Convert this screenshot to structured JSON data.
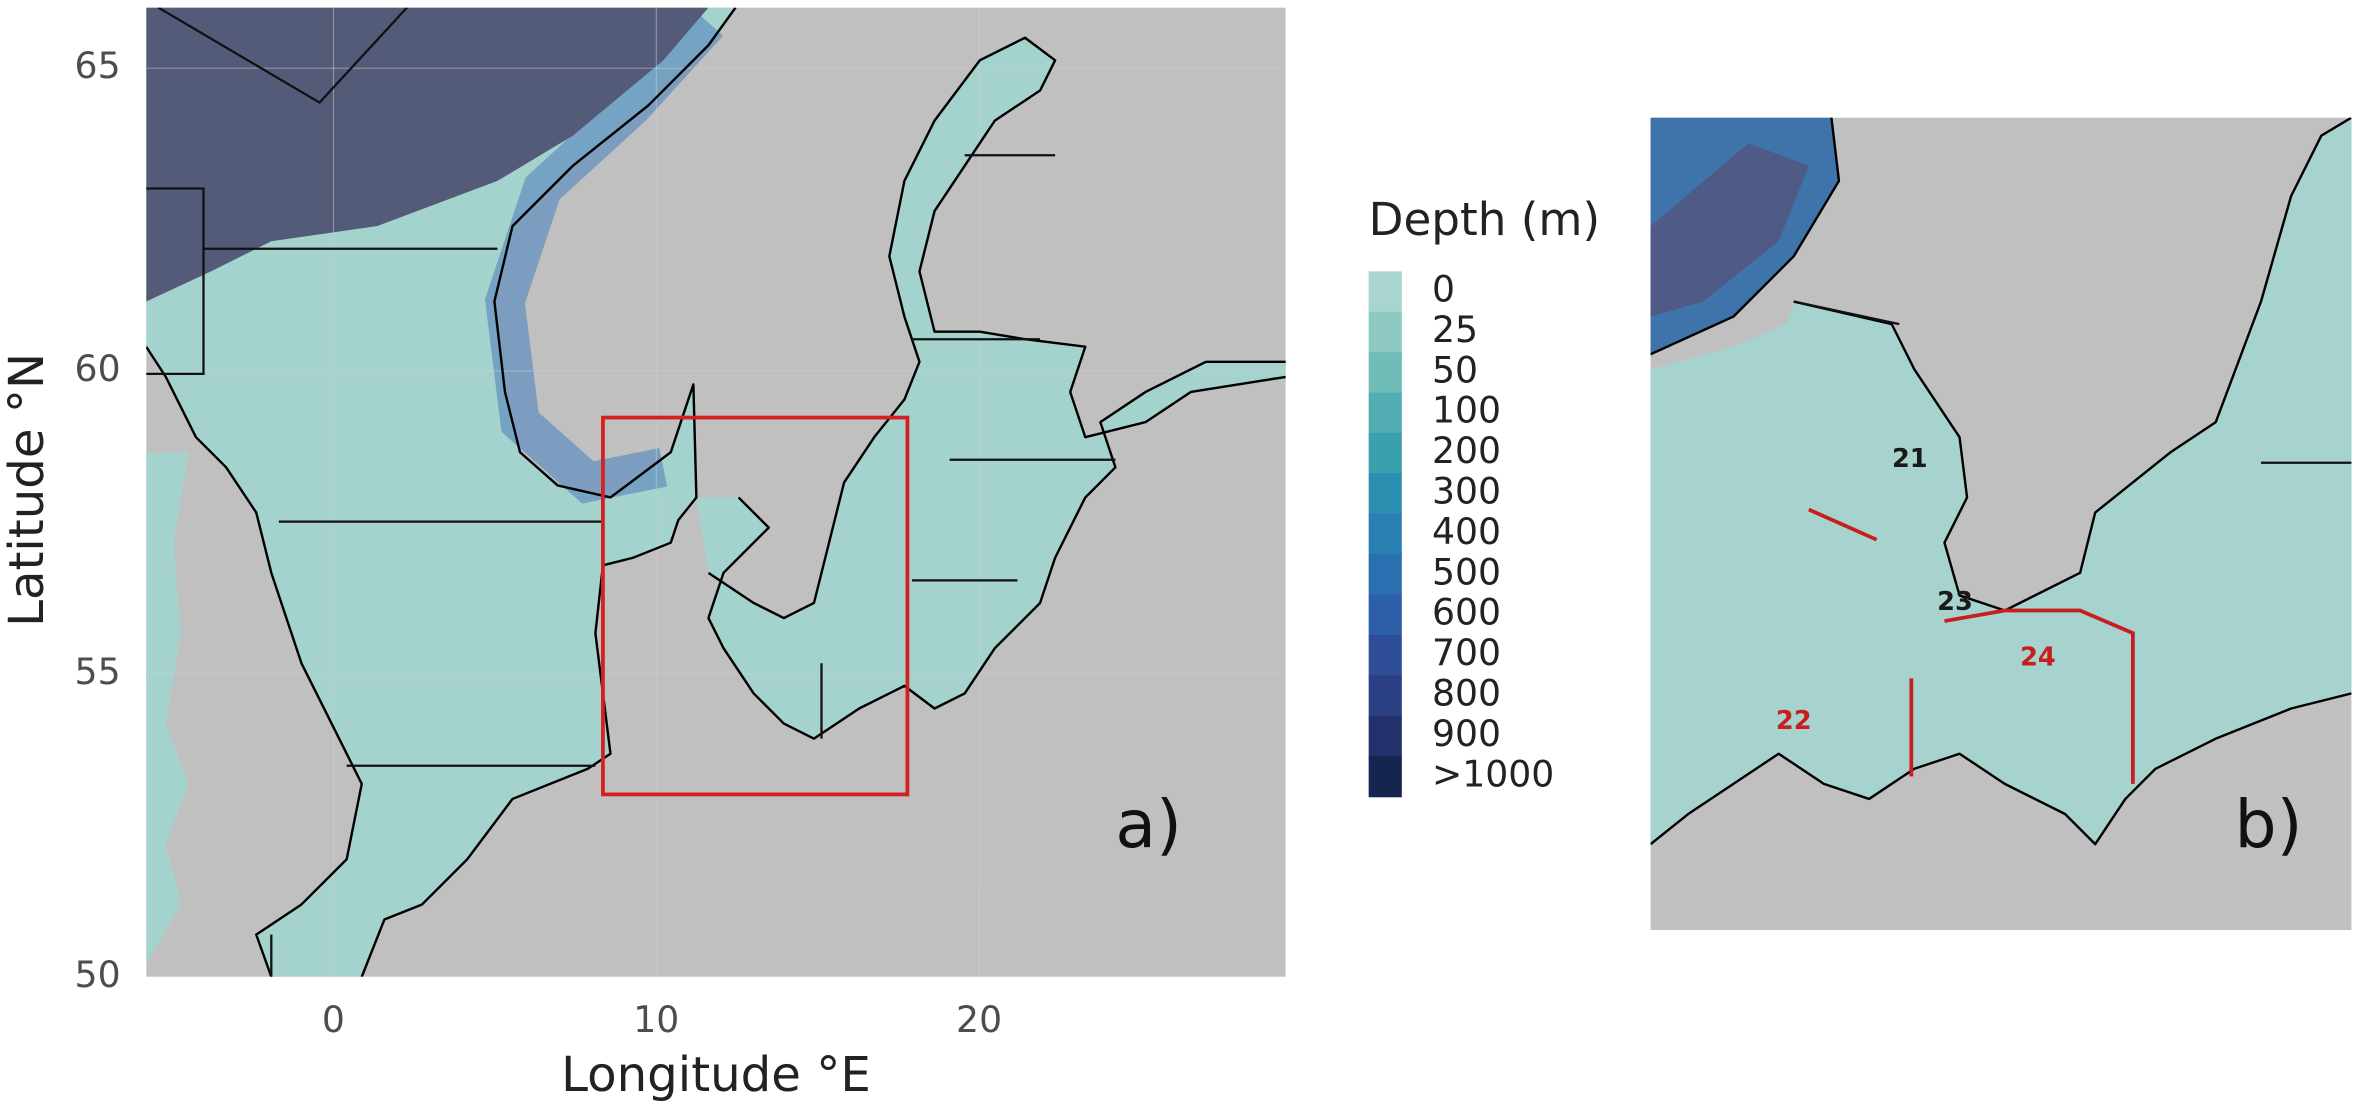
{
  "panel_a": {
    "label": "a)",
    "x_axis": {
      "label": "Longitude °E",
      "ticks": [
        0,
        10,
        20
      ]
    },
    "y_axis": {
      "label": "Latitude °N",
      "ticks": [
        50,
        55,
        60,
        65
      ]
    },
    "xlim": [
      -5.8,
      29.5
    ],
    "ylim": [
      50,
      66
    ]
  },
  "legend": {
    "title": "Depth (m)",
    "entries": [
      {
        "label": "0",
        "color": "#a9d5cf"
      },
      {
        "label": "25",
        "color": "#8ecac1"
      },
      {
        "label": "50",
        "color": "#70bcb7"
      },
      {
        "label": "100",
        "color": "#52adb2"
      },
      {
        "label": "200",
        "color": "#3aa0ad"
      },
      {
        "label": "300",
        "color": "#2d8fb0"
      },
      {
        "label": "400",
        "color": "#2a80b3"
      },
      {
        "label": "500",
        "color": "#2a6fb0"
      },
      {
        "label": "600",
        "color": "#2c5fa8"
      },
      {
        "label": "700",
        "color": "#2e4f98"
      },
      {
        "label": "800",
        "color": "#2b3f84"
      },
      {
        "label": "900",
        "color": "#22306c"
      },
      {
        "label": ">1000",
        "color": "#162550"
      }
    ]
  },
  "panel_b": {
    "label": "b)",
    "areas": [
      {
        "label": "21",
        "color": "#1a1a1a"
      },
      {
        "label": "22",
        "color": "#c81e1e"
      },
      {
        "label": "23",
        "color": "#1a1a1a"
      },
      {
        "label": "24",
        "color": "#c81e1e"
      }
    ]
  }
}
